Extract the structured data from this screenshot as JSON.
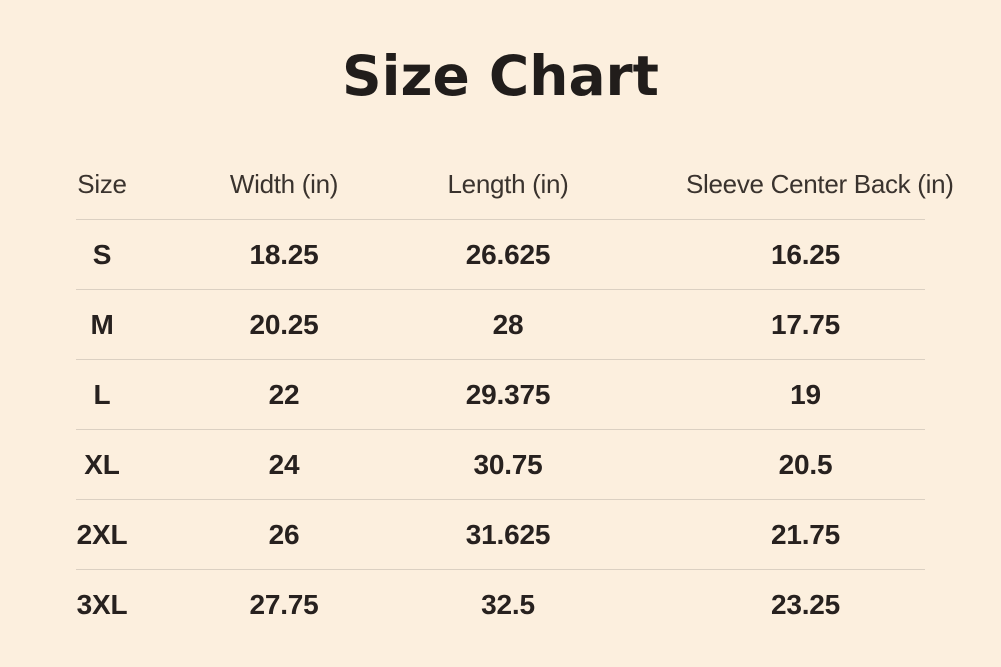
{
  "page": {
    "title": "Size Chart"
  },
  "chart_data": {
    "type": "table",
    "title": "Size Chart",
    "columns": [
      "Size",
      "Width (in)",
      "Length (in)",
      "Sleeve Center Back (in)"
    ],
    "rows": [
      {
        "size": "S",
        "width": "18.25",
        "length": "26.625",
        "sleeve_center_back": "16.25"
      },
      {
        "size": "M",
        "width": "20.25",
        "length": "28",
        "sleeve_center_back": "17.75"
      },
      {
        "size": "L",
        "width": "22",
        "length": "29.375",
        "sleeve_center_back": "19"
      },
      {
        "size": "XL",
        "width": "24",
        "length": "30.75",
        "sleeve_center_back": "20.5"
      },
      {
        "size": "2XL",
        "width": "26",
        "length": "31.625",
        "sleeve_center_back": "21.75"
      },
      {
        "size": "3XL",
        "width": "27.75",
        "length": "32.5",
        "sleeve_center_back": "23.25"
      }
    ]
  },
  "colors": {
    "background": "#fcefde",
    "title_text": "#211d1b",
    "header_text": "#3a332e",
    "cell_text": "#27211f",
    "divider": "#dbd0c2"
  }
}
